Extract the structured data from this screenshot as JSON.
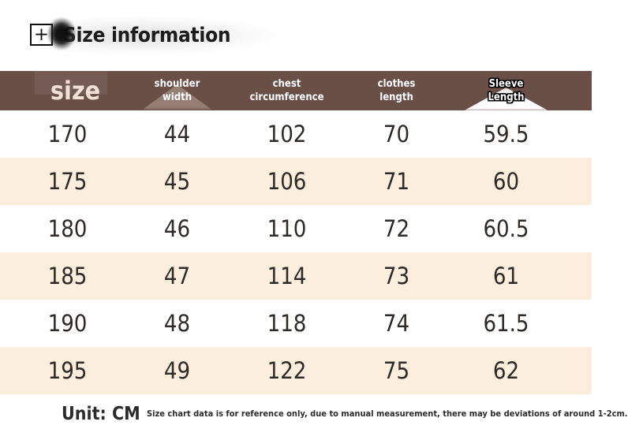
{
  "title_bar": {
    "plus_label": "+",
    "title": "Size information"
  },
  "chart_data": {
    "type": "table",
    "title": "Size information",
    "columns": [
      "size",
      "shoulder width",
      "chest circumference",
      "clothes length",
      "Sleeve Length"
    ],
    "rows": [
      [
        170,
        44,
        102,
        70,
        59.5
      ],
      [
        175,
        45,
        106,
        71,
        60
      ],
      [
        180,
        46,
        110,
        72,
        60.5
      ],
      [
        185,
        47,
        114,
        73,
        61
      ],
      [
        190,
        48,
        118,
        74,
        61.5
      ],
      [
        195,
        49,
        122,
        75,
        62
      ]
    ],
    "unit": "CM",
    "note": "Size chart data is for reference only, due to manual measurement, there may be deviations of around 1-2cm."
  },
  "table_header": {
    "size_label": "size",
    "col_shoulder": {
      "line1": "shoulder",
      "line2": "width"
    },
    "col_chest": {
      "line1": "chest",
      "line2": "circumference"
    },
    "col_clothes": {
      "line1": "clothes",
      "line2": "length"
    },
    "col_sleeve": {
      "line1": "Sleeve",
      "line2": "Length"
    }
  },
  "footer": {
    "unit_label": "Unit: CM",
    "note": "Size chart data is for reference only, due to manual measurement, there may be deviations of around 1-2cm."
  },
  "colors": {
    "header_bg": "#6A4F47",
    "alt_row_bg": "#FBEEDD",
    "header_text": "#FFFFFF",
    "size_label_text": "#F2DFD5",
    "body_text": "#2E2A28",
    "title_text": "#1C1C1C"
  }
}
